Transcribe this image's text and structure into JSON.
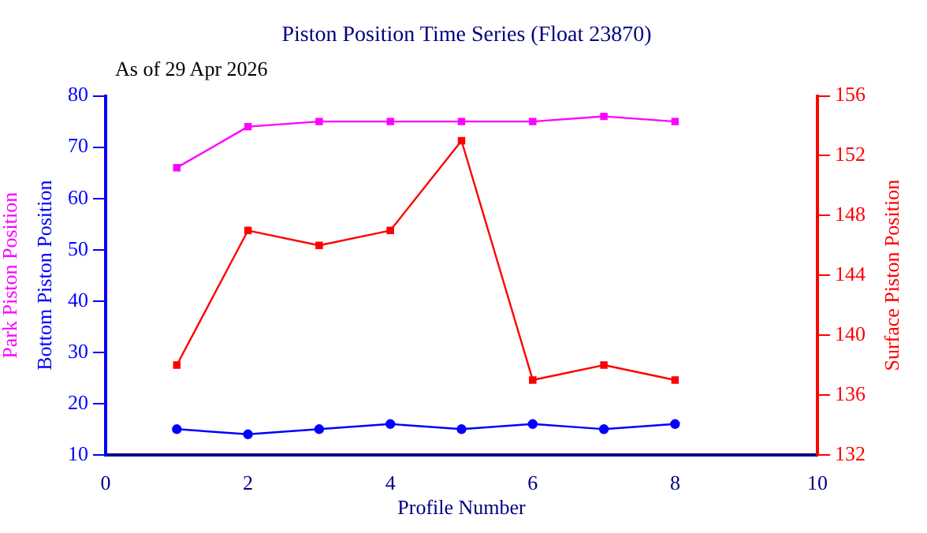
{
  "chart_data": {
    "type": "line",
    "title": "Piston Position Time Series (Float 23870)",
    "annotations": [
      "As of 29 Apr 2026"
    ],
    "xlabel": "Profile Number",
    "x": [
      1,
      2,
      3,
      4,
      5,
      6,
      7,
      8
    ],
    "series": [
      {
        "name": "Park Piston Position",
        "color": "#ff00ff",
        "marker": "square",
        "values": [
          66,
          74,
          75,
          75,
          75,
          75,
          76,
          75
        ]
      },
      {
        "name": "Bottom Piston Position",
        "color": "#0000ff",
        "marker": "circle",
        "values": [
          15,
          14,
          15,
          16,
          15,
          16,
          15,
          16
        ]
      },
      {
        "name": "Surface Piston Position",
        "color": "#ff0000",
        "marker": "square",
        "axis": "y2",
        "values": [
          138,
          147,
          146,
          147,
          153,
          137,
          138,
          137
        ]
      }
    ],
    "xlim": [
      0,
      10
    ],
    "xticks": [
      0,
      2,
      4,
      6,
      8,
      10
    ],
    "ylim": [
      10,
      80
    ],
    "yticks": [
      10,
      20,
      30,
      40,
      50,
      60,
      70,
      80
    ],
    "y2lim": [
      132,
      156
    ],
    "y2ticks": [
      132,
      136,
      140,
      144,
      148,
      152,
      156
    ],
    "grid": false,
    "legend": false,
    "line_style": "solid"
  }
}
